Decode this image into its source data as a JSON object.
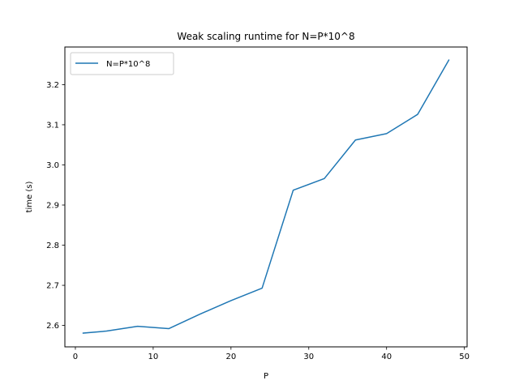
{
  "chart_data": {
    "type": "line",
    "title": "Weak scaling runtime for N=P*10^8",
    "xlabel": "P",
    "ylabel": "time (s)",
    "xlim": [
      -1.35,
      50.35
    ],
    "ylim": [
      2.5467,
      3.2937
    ],
    "xticks": [
      0,
      10,
      20,
      30,
      40,
      50
    ],
    "yticks": [
      2.6,
      2.7,
      2.8,
      2.9,
      3.0,
      3.1,
      3.2
    ],
    "ytick_labels": [
      "2.6",
      "2.7",
      "2.8",
      "2.9",
      "3.0",
      "3.1",
      "3.2"
    ],
    "grid": false,
    "legend_position": "upper left",
    "series": [
      {
        "name": "N=P*10^8",
        "color": "#1f77b4",
        "x": [
          1,
          4,
          8,
          12,
          16,
          20,
          24,
          28,
          32,
          36,
          40,
          44,
          48
        ],
        "y": [
          2.581,
          2.586,
          2.598,
          2.592,
          2.628,
          2.662,
          2.693,
          2.937,
          2.966,
          3.062,
          3.078,
          3.126,
          3.261
        ]
      }
    ]
  }
}
